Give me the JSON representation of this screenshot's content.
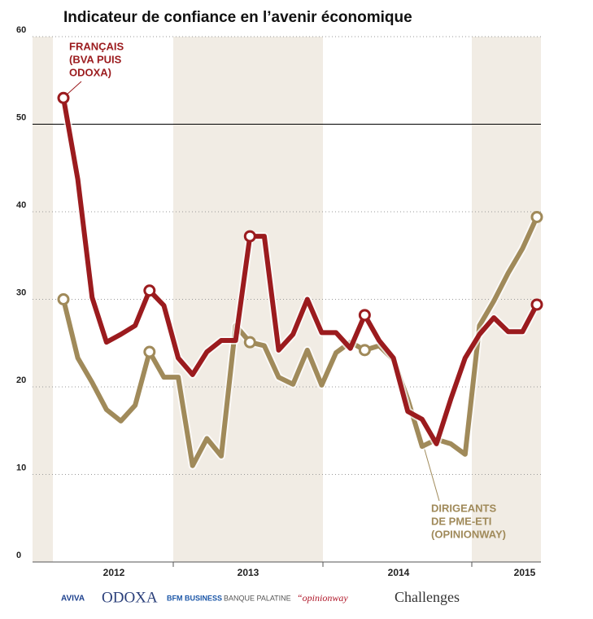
{
  "chart_data": {
    "type": "line",
    "title": "Indicateur de confiance en l’avenir économique",
    "categories": [
      null,
      null,
      null,
      null,
      null,
      null,
      null,
      null,
      null,
      null,
      null,
      null,
      null,
      null,
      null,
      null,
      null,
      null,
      null,
      null,
      null,
      null,
      null,
      null,
      null,
      null,
      null,
      null,
      null,
      null,
      null,
      null,
      null,
      null
    ],
    "x_labels": [
      "2012",
      "2013",
      "2014",
      "2015"
    ],
    "series": [
      {
        "label": [
          "FRANÇAIS",
          "(BVA PUIS",
          "ODOXA)"
        ],
        "color": "#9b1b1e",
        "markers": [
          0,
          6,
          13,
          21,
          33
        ],
        "values": [
          53,
          43.7,
          30.2,
          25.1,
          26,
          27,
          31,
          29.3,
          23.3,
          21.4,
          24,
          25.3,
          25.3,
          37.2,
          37.2,
          24.2,
          26,
          30,
          26.2,
          26.2,
          24.4,
          28.2,
          25.3,
          23.3,
          17.2,
          16.3,
          13.5,
          18.6,
          23.3,
          26,
          27.9,
          26.3,
          26.3,
          29.4
        ]
      },
      {
        "label": [
          "DIRIGEANTS",
          "DE PME-ETI",
          "(OPINIONWAY)"
        ],
        "color": "#a08a5a",
        "markers": [
          0,
          6,
          13,
          21,
          33
        ],
        "values": [
          30,
          23.3,
          20.5,
          17.4,
          16.1,
          17.9,
          24,
          21.1,
          21.1,
          11,
          14.1,
          12.1,
          27,
          25.1,
          24.7,
          21.1,
          20.3,
          24.2,
          20.2,
          23.9,
          25.1,
          24.2,
          24.7,
          23.1,
          18.6,
          13.2,
          14,
          13.5,
          12.3,
          27,
          29.8,
          33,
          35.8,
          39.4
        ]
      }
    ],
    "ylim": [
      0,
      60
    ],
    "yticks": [
      0,
      10,
      20,
      30,
      40,
      50,
      60
    ],
    "reference_line": 50,
    "grid": true,
    "sources": [
      "AVIVA",
      "ODOXA",
      "BFM BUSINESS",
      "BANQUE PALATINE",
      "“opinionway",
      "Challenges"
    ]
  }
}
